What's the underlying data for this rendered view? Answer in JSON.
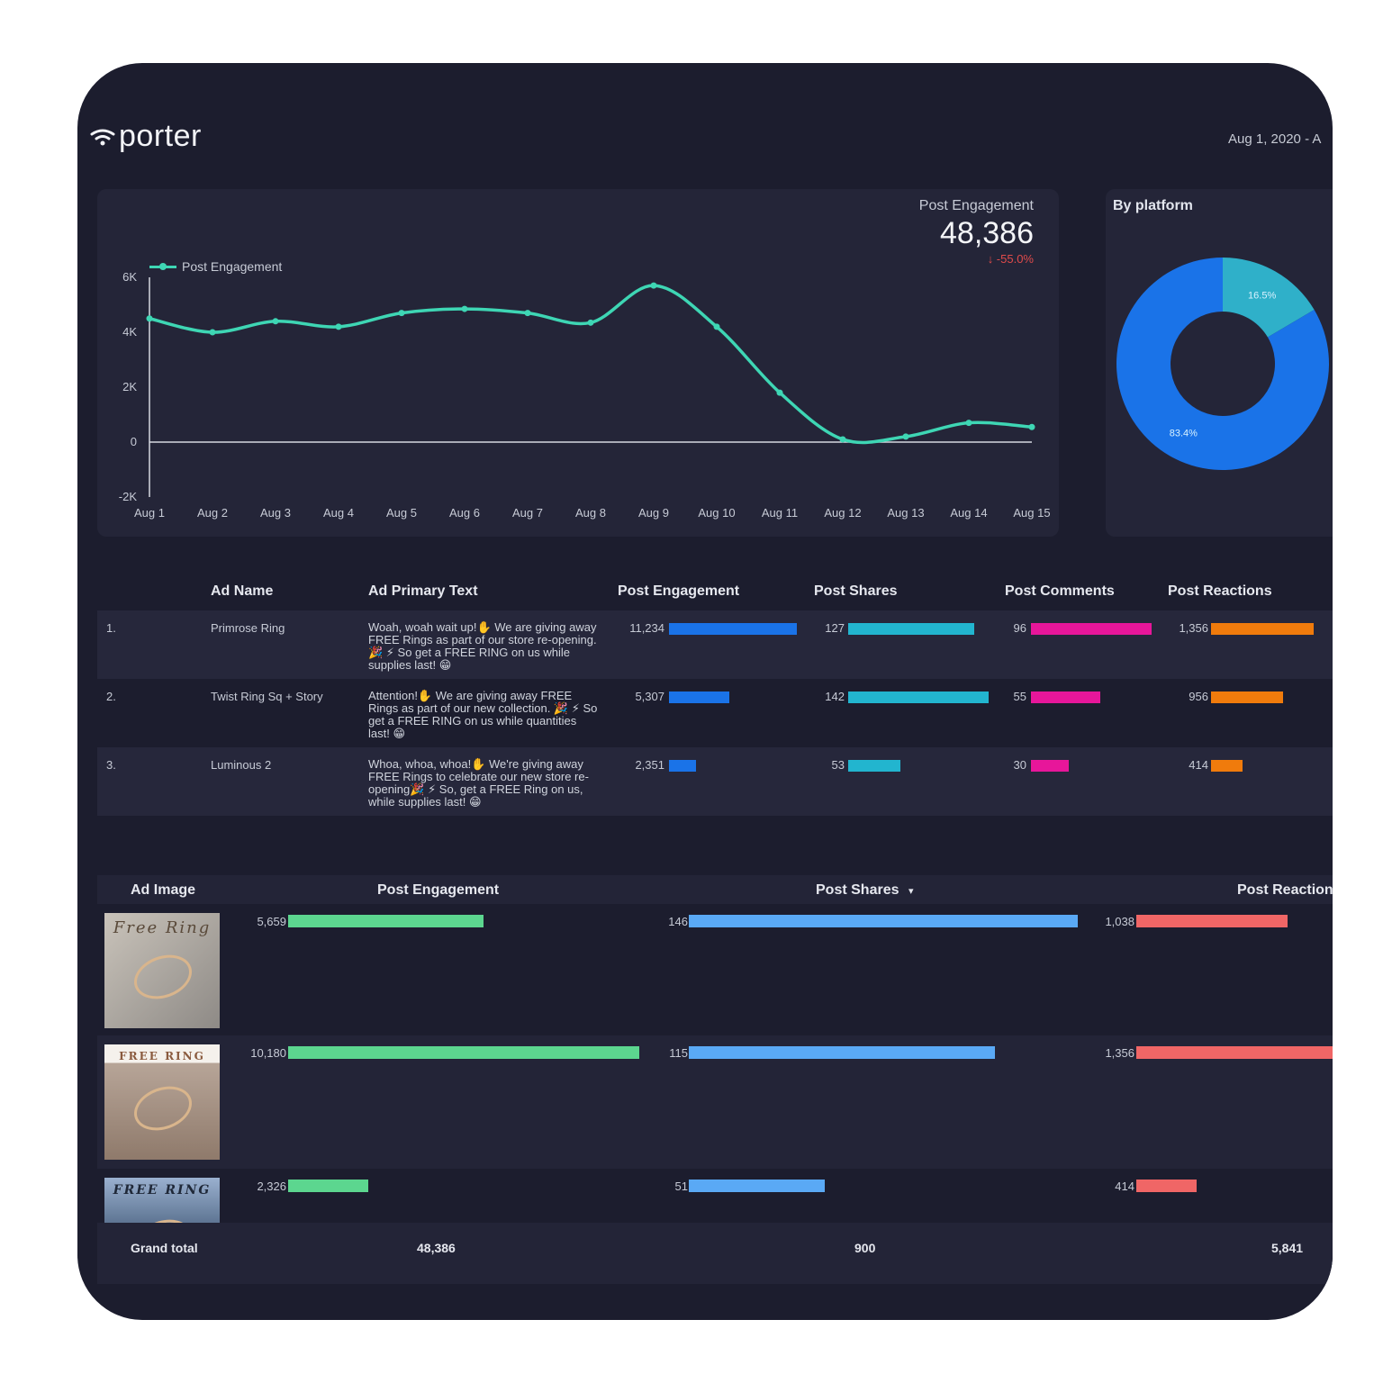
{
  "brand": {
    "name": "porter"
  },
  "date_range": "Aug 1, 2020 - A",
  "kpi": {
    "label": "Post Engagement",
    "value": "48,386",
    "delta": "↓ -55.0%"
  },
  "line_chart": {
    "legend_label": "Post Engagement",
    "accent": "#3ed6b4",
    "chart_data": {
      "type": "line",
      "categories": [
        "Aug 1",
        "Aug 2",
        "Aug 3",
        "Aug 4",
        "Aug 5",
        "Aug 6",
        "Aug 7",
        "Aug 8",
        "Aug 9",
        "Aug 10",
        "Aug 11",
        "Aug 12",
        "Aug 13",
        "Aug 14",
        "Aug 15"
      ],
      "series": [
        {
          "name": "Post Engagement",
          "values": [
            4500,
            4000,
            4400,
            4200,
            4700,
            4850,
            4700,
            4350,
            5700,
            4200,
            1800,
            100,
            200,
            700,
            550
          ]
        }
      ],
      "yticks": [
        "6K",
        "4K",
        "2K",
        "0",
        "-2K"
      ],
      "ylim": [
        -2000,
        6000
      ]
    }
  },
  "platform": {
    "title": "By platform",
    "chart_data": {
      "type": "pie",
      "slices": [
        {
          "label": "16.5%",
          "value": 16.5,
          "color": "#2fb0c9"
        },
        {
          "label": "83.4%",
          "value": 83.4,
          "color": "#1a73e8"
        }
      ]
    }
  },
  "ads_table": {
    "headers": [
      "Ad Name",
      "Ad Primary Text",
      "Post Engagement",
      "Post Shares",
      "Post Comments",
      "Post Reactions"
    ],
    "colors": {
      "engagement": "#1a73e8",
      "shares": "#22b5cf",
      "comments": "#e7169a",
      "reactions": "#f07b0c"
    },
    "max": {
      "engagement": 11234,
      "shares": 142,
      "comments": 96,
      "reactions": 1356
    },
    "rows": [
      {
        "idx": "1.",
        "name": "Primrose Ring",
        "text": "Woah, woah wait up!✋ We are giving away FREE Rings as part of our store re-opening. 🎉 ⚡ So get a FREE RING on us while supplies last! 😁",
        "engagement": "11,234",
        "engagement_val": 11234,
        "shares": "127",
        "shares_val": 127,
        "comments": "96",
        "comments_val": 96,
        "reactions": "1,356",
        "reactions_val": 1356
      },
      {
        "idx": "2.",
        "name": "Twist Ring Sq + Story",
        "text": "Attention!✋ We are giving away FREE Rings as part of our new collection. 🎉 ⚡ So get a FREE RING on us while quantities last! 😁",
        "engagement": "5,307",
        "engagement_val": 5307,
        "shares": "142",
        "shares_val": 142,
        "comments": "55",
        "comments_val": 55,
        "reactions": "956",
        "reactions_val": 956
      },
      {
        "idx": "3.",
        "name": "Luminous 2",
        "text": "Whoa, whoa, whoa!✋ We're giving away FREE Rings to celebrate our new store re-opening🎉 ⚡ So, get a FREE Ring on us, while supplies last! 😁",
        "engagement": "2,351",
        "engagement_val": 2351,
        "shares": "53",
        "shares_val": 53,
        "comments": "30",
        "comments_val": 30,
        "reactions": "414",
        "reactions_val": 414
      }
    ]
  },
  "image_table": {
    "headers": {
      "image": "Ad Image",
      "engagement": "Post Engagement",
      "shares": "Post Shares",
      "sort_icon": "▾",
      "reactions": "Post Reaction"
    },
    "colors": {
      "engagement": "#5cd68f",
      "shares": "#5aa9f5",
      "reactions": "#f06666"
    },
    "max": {
      "engagement": 10180,
      "shares": 146,
      "reactions": 1356
    },
    "rows": [
      {
        "thumb_text": "Free Ring",
        "engagement": "5,659",
        "engagement_val": 5659,
        "shares": "146",
        "shares_val": 146,
        "reactions": "1,038",
        "reactions_val": 1038
      },
      {
        "thumb_text": "FREE RING",
        "engagement": "10,180",
        "engagement_val": 10180,
        "shares": "115",
        "shares_val": 115,
        "reactions": "1,356",
        "reactions_val": 1356
      },
      {
        "thumb_text": "FREE RING",
        "engagement": "2,326",
        "engagement_val": 2326,
        "shares": "51",
        "shares_val": 51,
        "reactions": "414",
        "reactions_val": 414
      }
    ],
    "grand_total": {
      "label": "Grand total",
      "engagement": "48,386",
      "shares": "900",
      "reactions": "5,841"
    }
  }
}
